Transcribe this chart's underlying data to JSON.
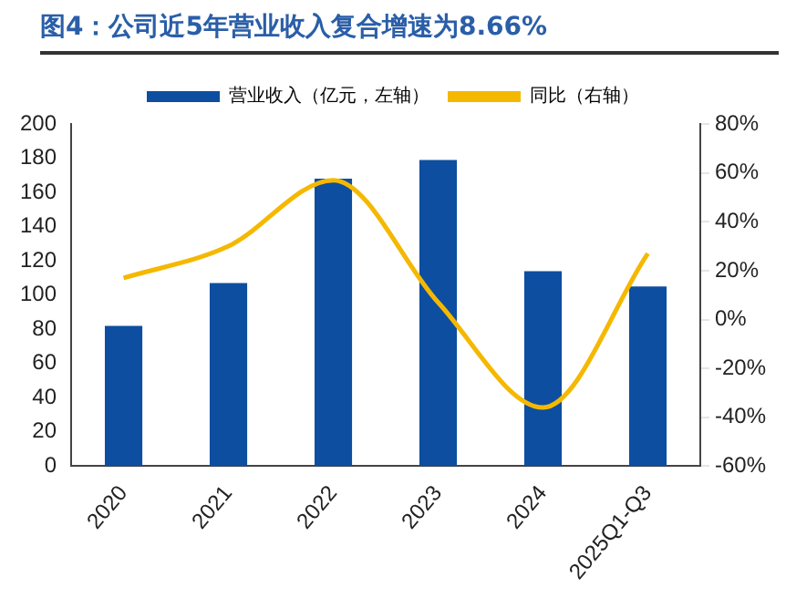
{
  "chart_data": {
    "type": "bar",
    "title": "图4：公司近5年营业收入复合增速为8.66%",
    "categories": [
      "2020",
      "2021",
      "2022",
      "2023",
      "2024",
      "2025Q1-Q3"
    ],
    "series": [
      {
        "name": "营业收入（亿元，左轴）",
        "color": "#0d4ea0",
        "values": [
          82,
          107,
          168,
          179,
          114,
          105
        ]
      },
      {
        "name": "同比（右轴）",
        "type": "line",
        "axis": "y2",
        "color": "#f5b800",
        "values": [
          17,
          30,
          57,
          7,
          -36,
          27
        ]
      }
    ],
    "ylim": [
      0,
      200
    ],
    "yticks": [
      0,
      20,
      40,
      60,
      80,
      100,
      120,
      140,
      160,
      180,
      200
    ],
    "y2lim": [
      -60,
      80
    ],
    "y2ticks": [
      {
        "value": -60,
        "label": "-60%"
      },
      {
        "value": -40,
        "label": "-40%"
      },
      {
        "value": -20,
        "label": "-20%"
      },
      {
        "value": 0,
        "label": "0%"
      },
      {
        "value": 20,
        "label": "20%"
      },
      {
        "value": 40,
        "label": "40%"
      },
      {
        "value": 60,
        "label": "60%"
      },
      {
        "value": 80,
        "label": "80%"
      }
    ],
    "grid": false,
    "legend": "top",
    "marker": "none"
  }
}
